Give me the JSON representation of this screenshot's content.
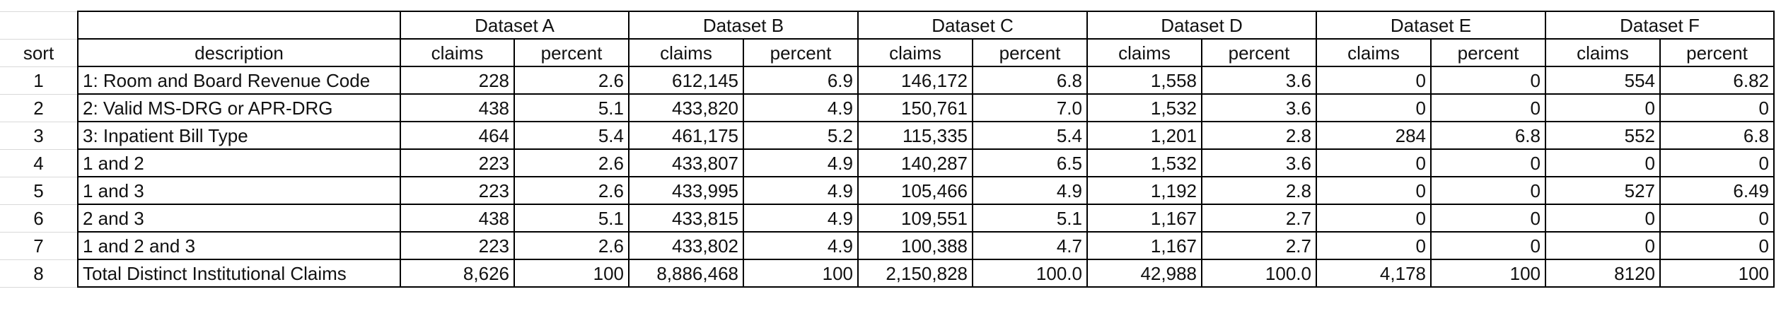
{
  "datasets": [
    "Dataset A",
    "Dataset B",
    "Dataset C",
    "Dataset D",
    "Dataset E",
    "Dataset F"
  ],
  "headers": {
    "sort": "sort",
    "description": "description",
    "claims": "claims",
    "percent": "percent"
  },
  "rows": [
    {
      "sort": "1",
      "description": "1: Room and Board Revenue Code",
      "values": [
        "228",
        "2.6",
        "612,145",
        "6.9",
        "146,172",
        "6.8",
        "1,558",
        "3.6",
        "0",
        "0",
        "554",
        "6.82"
      ]
    },
    {
      "sort": "2",
      "description": "2: Valid MS-DRG or APR-DRG",
      "values": [
        "438",
        "5.1",
        "433,820",
        "4.9",
        "150,761",
        "7.0",
        "1,532",
        "3.6",
        "0",
        "0",
        "0",
        "0"
      ]
    },
    {
      "sort": "3",
      "description": "3: Inpatient Bill Type",
      "values": [
        "464",
        "5.4",
        "461,175",
        "5.2",
        "115,335",
        "5.4",
        "1,201",
        "2.8",
        "284",
        "6.8",
        "552",
        "6.8"
      ]
    },
    {
      "sort": "4",
      "description": "1 and 2",
      "values": [
        "223",
        "2.6",
        "433,807",
        "4.9",
        "140,287",
        "6.5",
        "1,532",
        "3.6",
        "0",
        "0",
        "0",
        "0"
      ]
    },
    {
      "sort": "5",
      "description": "1 and 3",
      "values": [
        "223",
        "2.6",
        "433,995",
        "4.9",
        "105,466",
        "4.9",
        "1,192",
        "2.8",
        "0",
        "0",
        "527",
        "6.49"
      ]
    },
    {
      "sort": "6",
      "description": "2 and 3",
      "values": [
        "438",
        "5.1",
        "433,815",
        "4.9",
        "109,551",
        "5.1",
        "1,167",
        "2.7",
        "0",
        "0",
        "0",
        "0"
      ]
    },
    {
      "sort": "7",
      "description": "1 and 2 and 3",
      "values": [
        "223",
        "2.6",
        "433,802",
        "4.9",
        "100,388",
        "4.7",
        "1,167",
        "2.7",
        "0",
        "0",
        "0",
        "0"
      ]
    },
    {
      "sort": "8",
      "description": "Total Distinct Institutional Claims",
      "values": [
        "8,626",
        "100",
        "8,886,468",
        "100",
        "2,150,828",
        "100.0",
        "42,988",
        "100.0",
        "4,178",
        "100",
        "8120",
        "100"
      ]
    }
  ]
}
